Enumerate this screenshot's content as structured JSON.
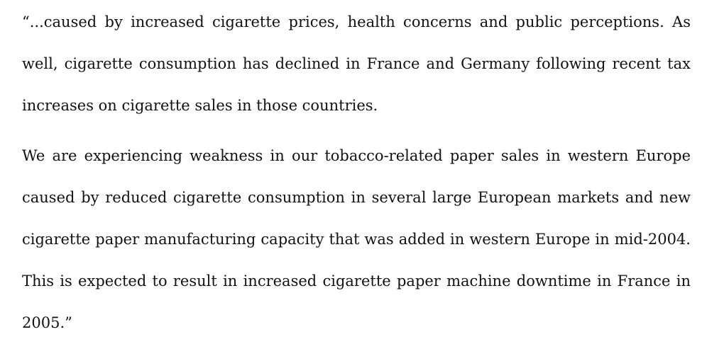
{
  "quote": {
    "paragraphs": [
      "“...caused by increased cigarette prices, health concerns and public perceptions. As well, cigarette consumption has declined in France and Germany following recent tax increases on cigarette sales in those countries.",
      "We are experiencing weakness in our tobacco-related paper sales in western Europe caused by reduced cigarette consumption in several large European markets and new cigarette paper manufacturing capacity that was added in western Europe in mid-2004. This is expected to result in increased cigarette paper machine downtime in France in 2005.”"
    ]
  }
}
